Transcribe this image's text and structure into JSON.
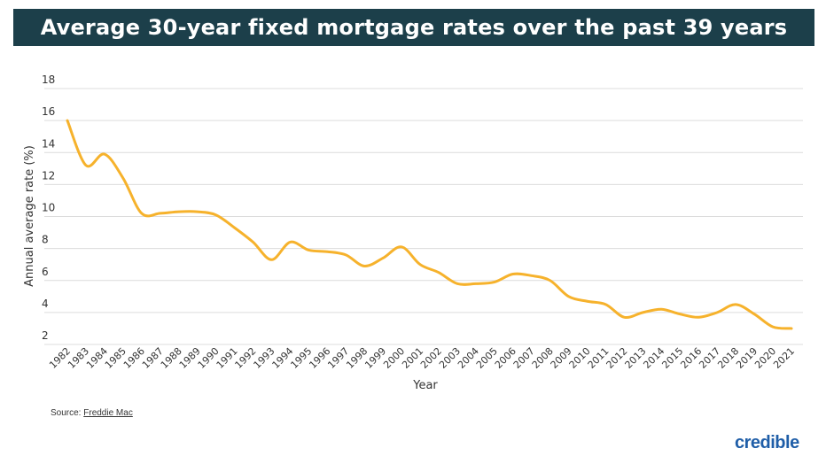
{
  "header": {
    "title": "Average 30-year fixed mortgage rates over the past 39 years"
  },
  "footer": {
    "source_label": "Source:",
    "source_link": "Freddie Mac",
    "brand": "credible"
  },
  "colors": {
    "title_background": "#1c3f4a",
    "line": "#f6b22c",
    "grid": "#dcdcdc",
    "brand": "#1f5ea8"
  },
  "chart_data": {
    "type": "line",
    "title": "Average 30-year fixed mortgage rates over the past 39 years",
    "xlabel": "Year",
    "ylabel": "Annual average rate (%)",
    "ylim": [
      2,
      18
    ],
    "yticks": [
      2,
      4,
      6,
      8,
      10,
      12,
      14,
      16,
      18
    ],
    "grid": true,
    "legend": "none",
    "x": [
      "1982",
      "1983",
      "1984",
      "1985",
      "1986",
      "1987",
      "1988",
      "1989",
      "1990",
      "1991",
      "1992",
      "1993",
      "1994",
      "1995",
      "1996",
      "1997",
      "1998",
      "1999",
      "2000",
      "2001",
      "2002",
      "2003",
      "2004",
      "2005",
      "2006",
      "2007",
      "2008",
      "2009",
      "2010",
      "2011",
      "2012",
      "2013",
      "2014",
      "2015",
      "2016",
      "2017",
      "2018",
      "2019",
      "2020",
      "2021"
    ],
    "series": [
      {
        "values": [
          16.0,
          13.2,
          13.9,
          12.4,
          10.2,
          10.2,
          10.3,
          10.3,
          10.1,
          9.3,
          8.4,
          7.3,
          8.4,
          7.9,
          7.8,
          7.6,
          6.9,
          7.4,
          8.1,
          7.0,
          6.5,
          5.8,
          5.8,
          5.9,
          6.4,
          6.3,
          6.0,
          5.0,
          4.7,
          4.5,
          3.7,
          4.0,
          4.2,
          3.9,
          3.7,
          4.0,
          4.5,
          3.9,
          3.1,
          3.0
        ]
      }
    ]
  }
}
